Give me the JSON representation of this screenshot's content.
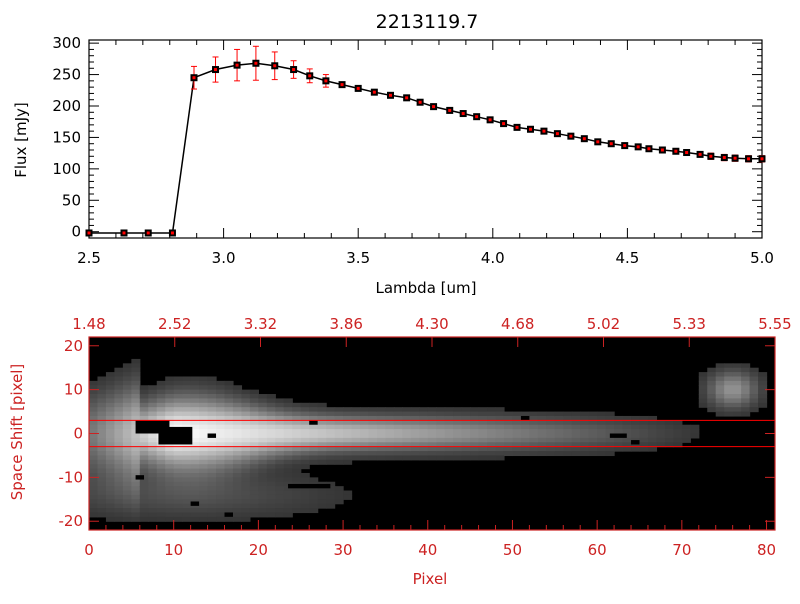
{
  "chart_data": [
    {
      "type": "line",
      "title": "2213119.7",
      "xlabel": "Lambda [um]",
      "ylabel": "Flux [mJy]",
      "xlim": [
        2.5,
        5.0
      ],
      "ylim": [
        -10,
        305
      ],
      "x_ticks": [
        "2.5",
        "3.0",
        "3.5",
        "4.0",
        "4.5",
        "5.0"
      ],
      "y_ticks": [
        "0",
        "50",
        "100",
        "150",
        "200",
        "250",
        "300"
      ],
      "line_color": "#000000",
      "marker_color": "#ff0000",
      "errorbar_color": "#ff0000",
      "series": [
        {
          "x": [
            2.5,
            2.63,
            2.72,
            2.81,
            2.89,
            2.97,
            3.05,
            3.12,
            3.19,
            3.26,
            3.32,
            3.38,
            3.44,
            3.5,
            3.56,
            3.62,
            3.68,
            3.73,
            3.78,
            3.84,
            3.89,
            3.94,
            3.99,
            4.04,
            4.09,
            4.14,
            4.19,
            4.24,
            4.29,
            4.34,
            4.39,
            4.44,
            4.49,
            4.54,
            4.58,
            4.63,
            4.68,
            4.72,
            4.77,
            4.81,
            4.86,
            4.9,
            4.95,
            5.0
          ],
          "y": [
            -2,
            -2,
            -2,
            -2,
            245,
            258,
            265,
            268,
            264,
            258,
            248,
            240,
            234,
            228,
            222,
            217,
            213,
            206,
            199,
            193,
            188,
            183,
            178,
            172,
            166,
            163,
            160,
            156,
            152,
            148,
            143,
            140,
            137,
            135,
            132,
            130,
            128,
            126,
            123,
            120,
            118,
            117,
            116,
            116
          ],
          "err": [
            2,
            2,
            2,
            2,
            18,
            20,
            25,
            27,
            22,
            14,
            11,
            10,
            3,
            3,
            3,
            3,
            3,
            3,
            3,
            3,
            3,
            3,
            3,
            3,
            3,
            3,
            3,
            3,
            3,
            3,
            3,
            3,
            3,
            3,
            3,
            3,
            3,
            3,
            3,
            5,
            5,
            5,
            5,
            5
          ]
        }
      ]
    },
    {
      "type": "heatmap",
      "xlabel": "Pixel",
      "ylabel": "Space Shift [pixel]",
      "xlim": [
        0,
        81
      ],
      "ylim": [
        -22,
        22
      ],
      "x_ticks": [
        "0",
        "10",
        "20",
        "30",
        "40",
        "50",
        "60",
        "70",
        "80"
      ],
      "top_ticks": [
        "1.48",
        "2.52",
        "3.32",
        "3.86",
        "4.30",
        "4.68",
        "5.02",
        "5.33",
        "5.55"
      ],
      "y_ticks": [
        "20",
        "10",
        "0",
        "-10",
        "-20"
      ],
      "axis_color": "#cc2222",
      "aperture_y": [
        3,
        -3
      ],
      "aperture_color": "#ff0000",
      "colormap": "grayscale"
    }
  ]
}
